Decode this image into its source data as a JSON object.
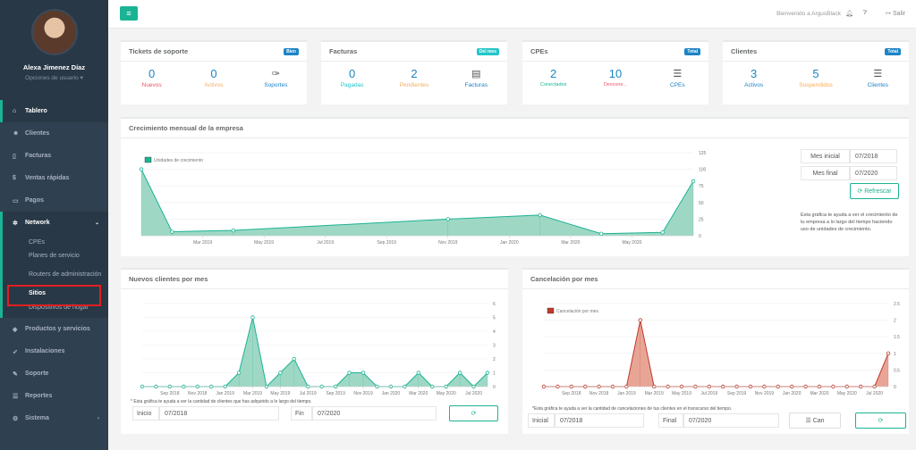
{
  "profile": {
    "name": "Alexa Jimenez Díaz",
    "options": "Opciones de usuario ▾"
  },
  "nav": {
    "tablero": "Tablero",
    "clientes": "Clientes",
    "facturas": "Facturas",
    "ventas": "Ventas rápidas",
    "pagos": "Pagos",
    "network": "Network",
    "sub": {
      "cpes": "CPEs",
      "planes": "Planes de servicio",
      "routers": "Routers de administración",
      "sitios": "Sitios",
      "dispositivos": "Dispositivos de hogar"
    },
    "productos": "Productos y servicios",
    "instalaciones": "Instalaciones",
    "soporte": "Soporte",
    "reportes": "Reportes",
    "sistema": "Sistema"
  },
  "topbar": {
    "welcome": "Bienvenido a ArgusBlack",
    "logout": "Salir"
  },
  "colors": {
    "accent": "#1ab394",
    "sidebar": "#2f4050",
    "red": "#ed5565",
    "orange": "#f8ac59",
    "blue": "#1c84c6",
    "cyan": "#23c6c8"
  },
  "cards": {
    "tickets": {
      "title": "Tickets de soporte",
      "badge": "Bien",
      "stats": [
        {
          "num": "0",
          "label": "Nuevos"
        },
        {
          "num": "0",
          "label": "Activos"
        }
      ],
      "link": "Soportes"
    },
    "facturas": {
      "title": "Facturas",
      "badge": "Del mes",
      "stats": [
        {
          "num": "0",
          "label": "Pagadas"
        },
        {
          "num": "2",
          "label": "Pendientes"
        }
      ],
      "link": "Facturas"
    },
    "cpes": {
      "title": "CPEs",
      "badge": "Total",
      "stats": [
        {
          "num": "2",
          "label": "Conectados"
        },
        {
          "num": "10",
          "label": "Descone..."
        }
      ],
      "link": "CPEs"
    },
    "clientes": {
      "title": "Clientes",
      "badge": "Total",
      "stats": [
        {
          "num": "3",
          "label": "Activos"
        },
        {
          "num": "5",
          "label": "Suspendidos"
        }
      ],
      "link": "Clientes"
    }
  },
  "growth": {
    "title": "Crecimiento mensual de la empresa",
    "form": {
      "start_label": "Mes inicial",
      "start_value": "07/2018",
      "end_label": "Mes final",
      "end_value": "07/2020",
      "refresh": "⟳ Refrescar"
    },
    "help": "Esta gráfica te ayuda a ver el crecimiento de tu empresa a lo largo del tiempo haciendo uso de unidades de crecimiento."
  },
  "newclients": {
    "title": "Nuevos clientes por mes",
    "help": "* Esta gráfica te ayuda a ver la cantidad de clientes que has adquirido a lo largo del tiempo.",
    "start_label": "Inicio",
    "start_value": "07/2018",
    "end_label": "Fin",
    "end_value": "07/2020"
  },
  "cancel": {
    "title": "Cancelación por mes",
    "help": "*Esta gráfica te ayuda a ver la cantidad de cancelaciones de tus clientes en el transcurso del tiempo.",
    "start_label": "Inicial",
    "start_value": "07/2018",
    "end_label": "Final",
    "end_value": "07/2020",
    "can_button": "☰ Can"
  },
  "chart_data": [
    {
      "type": "area",
      "series": [
        {
          "name": "Unidades de crecimiento",
          "x": [
            "2019-01",
            "2019-02",
            "2019-04",
            "2019-11",
            "2020-02",
            "2020-04",
            "2020-06",
            "2020-07"
          ],
          "values": [
            100,
            6,
            8,
            25,
            31,
            3,
            5,
            82
          ]
        }
      ],
      "x_ticks": [
        "Mar 2019",
        "May 2019",
        "Jul 2019",
        "Sep 2019",
        "Nov 2019",
        "Jan 2020",
        "Mar 2020",
        "May 2020"
      ],
      "y_ticks": [
        0,
        25,
        50,
        75,
        100,
        125
      ],
      "ylim": [
        0,
        125
      ],
      "legend": "top-left",
      "grid": true
    },
    {
      "type": "area",
      "series": [
        {
          "values": [
            0,
            0,
            0,
            0,
            0,
            0,
            0,
            1,
            5,
            0,
            1,
            2,
            0,
            0,
            0,
            1,
            1,
            0,
            0,
            0,
            1,
            0,
            0,
            1,
            0,
            1
          ]
        }
      ],
      "x_ticks": [
        "Sep 2018",
        "Nov 2018",
        "Jan 2019",
        "Mar 2019",
        "May 2019",
        "Jul 2019",
        "Sep 2019",
        "Nov 2019",
        "Jan 2020",
        "Mar 2020",
        "May 2020",
        "Jul 2020"
      ],
      "y_ticks": [
        0,
        1,
        2,
        3,
        4,
        5,
        6
      ],
      "ylim": [
        0,
        6
      ],
      "grid": true
    },
    {
      "type": "area",
      "series": [
        {
          "name": "Cancelación por mes",
          "values": [
            0,
            0,
            0,
            0,
            0,
            0,
            0,
            2,
            0,
            0,
            0,
            0,
            0,
            0,
            0,
            0,
            0,
            0,
            0,
            0,
            0,
            0,
            0,
            0,
            0,
            1
          ]
        }
      ],
      "x_ticks": [
        "Sep 2018",
        "Nov 2018",
        "Jan 2019",
        "Mar 2019",
        "May 2019",
        "Jul 2019",
        "Sep 2019",
        "Nov 2019",
        "Jan 2020",
        "Mar 2020",
        "May 2020",
        "Jul 2020"
      ],
      "y_ticks": [
        0,
        0.5,
        1.0,
        1.5,
        2.0,
        2.5
      ],
      "ylim": [
        0,
        2.5
      ],
      "legend": "top-left",
      "grid": true
    }
  ]
}
